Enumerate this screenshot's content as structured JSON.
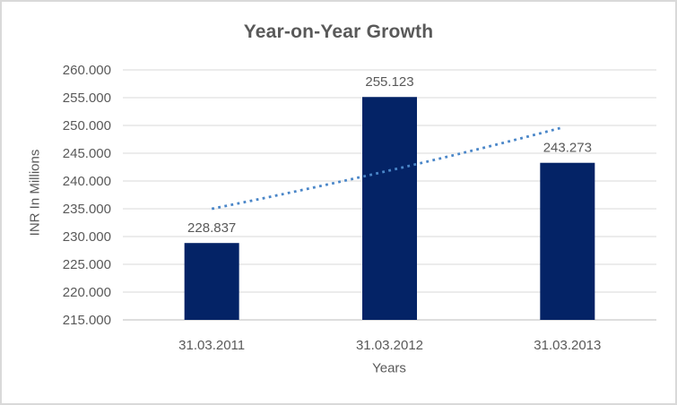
{
  "chart_data": {
    "type": "bar",
    "title": "Year-on-Year Growth",
    "categories": [
      "31.03.2011",
      "31.03.2012",
      "31.03.2013"
    ],
    "values": [
      228.837,
      255.123,
      243.273
    ],
    "data_labels": [
      "228.837",
      "255.123",
      "243.273"
    ],
    "xlabel": "Years",
    "ylabel": "INR In Millions",
    "ylim": [
      215,
      260
    ],
    "ytick_step": 5,
    "ytick_labels": [
      "215.000",
      "220.000",
      "225.000",
      "230.000",
      "235.000",
      "240.000",
      "245.000",
      "250.000",
      "255.000",
      "260.000"
    ],
    "grid": true,
    "legend": false,
    "trendline": {
      "style": "dotted",
      "values_at_categories": [
        235.0,
        241.9,
        249.7
      ]
    },
    "colors": {
      "bar": "#042366",
      "trendline": "#4A86C8",
      "gridline": "#D9D9D9",
      "axis_line": "#C9C9C9",
      "text": "#595959",
      "background": "#FFFFFF",
      "border": "#D9D9D9"
    }
  }
}
